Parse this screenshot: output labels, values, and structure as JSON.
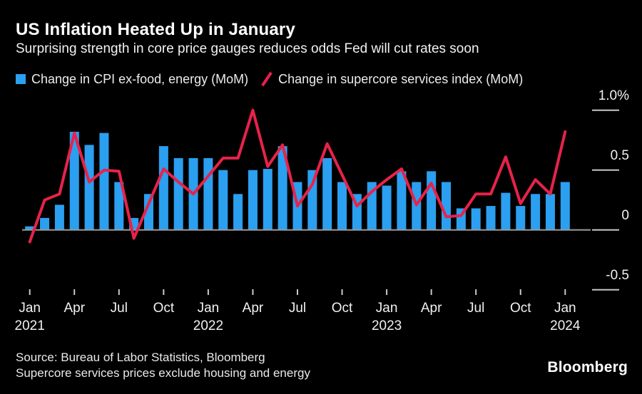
{
  "header": {
    "title": "US Inflation Heated Up in January",
    "subtitle": "Surprising strength in core price gauges reduces odds Fed will cut rates soon"
  },
  "legend": [
    {
      "label": "Change in CPI ex-food, energy (MoM)",
      "marker": "square",
      "color": "#2b9ff0"
    },
    {
      "label": "Change in supercore services index (MoM)",
      "marker": "slash",
      "color": "#e8224a"
    }
  ],
  "footer": {
    "source_line": "Source: Bureau of Labor Statistics, Bloomberg",
    "note_line": "Supercore services prices exclude housing and energy",
    "brand": "Bloomberg"
  },
  "colors": {
    "background": "#000000",
    "bar": "#2b9ff0",
    "line": "#e8224a",
    "zero_line": "#9c9c9c",
    "tick": "#c9c9c9",
    "text": "#f1f1f1"
  },
  "chart_data": {
    "type": "bar+line",
    "title": "US Inflation Heated Up in January",
    "subtitle": "Surprising strength in core price gauges reduces odds Fed will cut rates soon",
    "unit": "%",
    "ylim": [
      -0.75,
      1.05
    ],
    "grid": false,
    "legend_position": "top",
    "x": [
      "Jan 2021",
      "Feb 2021",
      "Mar 2021",
      "Apr 2021",
      "May 2021",
      "Jun 2021",
      "Jul 2021",
      "Aug 2021",
      "Sep 2021",
      "Oct 2021",
      "Nov 2021",
      "Dec 2021",
      "Jan 2022",
      "Feb 2022",
      "Mar 2022",
      "Apr 2022",
      "May 2022",
      "Jun 2022",
      "Jul 2022",
      "Aug 2022",
      "Sep 2022",
      "Oct 2022",
      "Nov 2022",
      "Dec 2022",
      "Jan 2023",
      "Feb 2023",
      "Mar 2023",
      "Apr 2023",
      "May 2023",
      "Jun 2023",
      "Jul 2023",
      "Aug 2023",
      "Sep 2023",
      "Oct 2023",
      "Nov 2023",
      "Dec 2023",
      "Jan 2024"
    ],
    "series": [
      {
        "name": "Change in CPI ex-food, energy (MoM)",
        "type": "bar",
        "color": "#2b9ff0",
        "values": [
          0.03,
          0.1,
          0.21,
          0.82,
          0.71,
          0.81,
          0.4,
          0.1,
          0.3,
          0.7,
          0.6,
          0.6,
          0.6,
          0.5,
          0.3,
          0.5,
          0.51,
          0.7,
          0.4,
          0.5,
          0.6,
          0.4,
          0.3,
          0.4,
          0.37,
          0.49,
          0.4,
          0.49,
          0.4,
          0.18,
          0.18,
          0.2,
          0.31,
          0.2,
          0.3,
          0.3,
          0.4
        ]
      },
      {
        "name": "Change in supercore services index (MoM)",
        "type": "line",
        "color": "#e8224a",
        "values": [
          -0.1,
          0.25,
          0.3,
          0.81,
          0.4,
          0.5,
          0.49,
          -0.07,
          0.22,
          0.51,
          0.4,
          0.3,
          0.45,
          0.6,
          0.6,
          1.0,
          0.53,
          0.71,
          0.2,
          0.38,
          0.72,
          0.46,
          0.2,
          0.32,
          0.42,
          0.51,
          0.21,
          0.39,
          0.11,
          0.12,
          0.3,
          0.3,
          0.61,
          0.22,
          0.42,
          0.3,
          0.82
        ]
      }
    ],
    "y_ticks": [
      {
        "label": "1.0%",
        "value": 1.0
      },
      {
        "label": "0.5",
        "value": 0.5
      },
      {
        "label": "0",
        "value": 0.0
      },
      {
        "label": "-0.5",
        "value": -0.5
      }
    ],
    "x_ticks": [
      {
        "index": 0,
        "label": "Jan",
        "year": "2021"
      },
      {
        "index": 3,
        "label": "Apr"
      },
      {
        "index": 6,
        "label": "Jul"
      },
      {
        "index": 9,
        "label": "Oct"
      },
      {
        "index": 12,
        "label": "Jan",
        "year": "2022"
      },
      {
        "index": 15,
        "label": "Apr"
      },
      {
        "index": 18,
        "label": "Jul"
      },
      {
        "index": 21,
        "label": "Oct"
      },
      {
        "index": 24,
        "label": "Jan",
        "year": "2023"
      },
      {
        "index": 27,
        "label": "Apr"
      },
      {
        "index": 30,
        "label": "Jul"
      },
      {
        "index": 33,
        "label": "Oct"
      },
      {
        "index": 36,
        "label": "Jan",
        "year": "2024"
      }
    ]
  }
}
